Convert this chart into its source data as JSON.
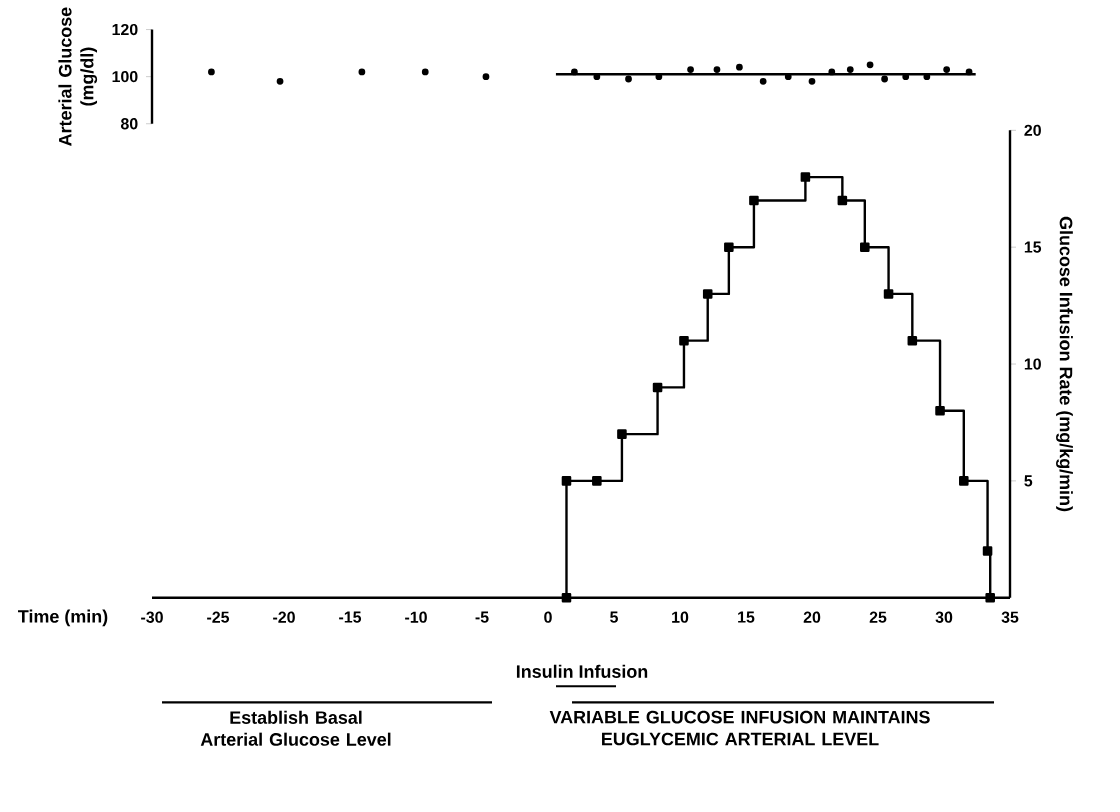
{
  "chart_data": [
    {
      "type": "scatter",
      "ylabel": "Arterial Glucose (mg/dl)",
      "xlim": [
        -30,
        35
      ],
      "ylim": [
        80,
        120
      ],
      "yticks": [
        80,
        100,
        120
      ],
      "tick_labels": "y",
      "series": [
        {
          "type": "scatter",
          "marker": "circle",
          "color": "#000000",
          "x": [
            -25.5,
            -20.3,
            -14.1,
            -9.3,
            -4.7,
            2.0,
            3.7,
            6.1,
            8.4,
            10.8,
            12.8,
            14.5,
            16.3,
            18.2,
            20.0,
            21.5,
            22.9,
            24.4,
            25.5,
            27.1,
            28.7,
            30.2,
            31.9
          ],
          "values": [
            102,
            98,
            102,
            102,
            100,
            102,
            100,
            99,
            100,
            103,
            103,
            104,
            98,
            100,
            98,
            102,
            103,
            105,
            99,
            100,
            100,
            103,
            102
          ]
        },
        {
          "type": "line",
          "marker": "none",
          "color": "#000000",
          "x": [
            0.6,
            32.4
          ],
          "values": [
            101,
            101
          ]
        }
      ]
    },
    {
      "type": "step",
      "xlabel": "Time (min)",
      "y2label": "Glucose Infusion Rate (mg/kg/min)",
      "xlim": [
        -30,
        35
      ],
      "xticks": [
        -30,
        -25,
        -20,
        -15,
        -10,
        -5,
        0,
        5,
        10,
        15,
        20,
        25,
        30,
        35
      ],
      "y2lim": [
        0,
        20
      ],
      "y2ticks": [
        5,
        10,
        15,
        20
      ],
      "marker": "square",
      "line_style": "solid",
      "series": [
        {
          "axis": "y2",
          "color": "#000000",
          "x": [
            1.4,
            1.4,
            3.7,
            5.6,
            8.3,
            10.3,
            12.1,
            13.7,
            15.6,
            19.5,
            22.3,
            24.0,
            25.8,
            27.6,
            29.7,
            31.5,
            33.3,
            33.5
          ],
          "values": [
            0,
            5,
            5,
            7,
            9,
            11,
            13,
            15,
            17,
            18,
            17,
            15,
            13,
            11,
            8,
            5,
            2,
            0
          ]
        }
      ],
      "annotations": [
        "Insulin Infusion",
        "Establish Basal Arterial Glucose Level",
        "VARIABLE GLUCOSE INFUSION MAINTAINS EUGLYCEMIC ARTERIAL LEVEL"
      ]
    }
  ]
}
